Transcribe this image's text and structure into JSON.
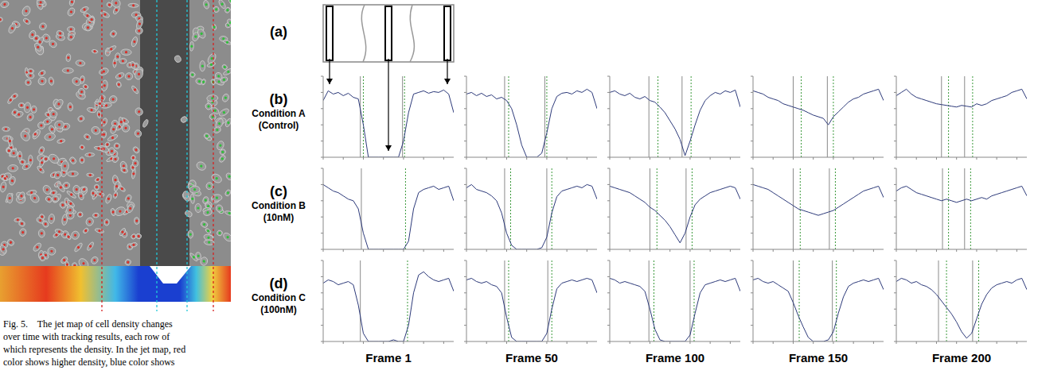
{
  "caption": [
    "Fig. 5.    The jet map of cell density changes",
    "over time with tracking results, each row of",
    "which represents the density. In the jet map, red",
    "color shows higher density, blue color shows"
  ],
  "panel_a": {
    "label": "(a)"
  },
  "rows": [
    {
      "label": "(b)",
      "condition": "Condition A",
      "note": "(Control)"
    },
    {
      "label": "(c)",
      "condition": "Condition B",
      "note": "(10nM)"
    },
    {
      "label": "(d)",
      "condition": "Condition C",
      "note": "(100nM)"
    }
  ],
  "columns": [
    "Frame 1",
    "Frame 50",
    "Frame 100",
    "Frame 150",
    "Frame 200"
  ],
  "chart_data": [
    {
      "type": "line",
      "color": "#2d3a7a",
      "tick_labels": false,
      "xlim": [
        0,
        1300
      ],
      "ylim": [
        0,
        100
      ],
      "xticks": [
        0,
        200,
        400,
        600,
        800,
        1000,
        1200
      ],
      "yticks": [
        0,
        20,
        40,
        60,
        80,
        100
      ],
      "x": [
        0,
        50,
        100,
        150,
        200,
        250,
        300,
        350,
        400,
        450,
        500,
        550,
        600,
        650,
        700,
        750,
        800,
        850,
        900,
        950,
        1000,
        1050,
        1100,
        1150,
        1200,
        1250,
        1300
      ],
      "values": [
        70,
        82,
        78,
        80,
        76,
        79,
        74,
        72,
        40,
        0,
        0,
        0,
        0,
        0,
        0,
        0,
        20,
        55,
        78,
        80,
        82,
        79,
        81,
        80,
        83,
        78,
        55
      ],
      "edges": [
        370,
        400,
        790,
        810
      ]
    },
    {
      "type": "line",
      "color": "#2d3a7a",
      "tick_labels": false,
      "xlim": [
        0,
        1300
      ],
      "ylim": [
        0,
        100
      ],
      "xticks": [
        0,
        200,
        400,
        600,
        800,
        1000,
        1200
      ],
      "yticks": [
        0,
        20,
        40,
        60,
        80,
        100
      ],
      "x": [
        0,
        50,
        100,
        150,
        200,
        250,
        300,
        350,
        400,
        450,
        500,
        550,
        600,
        650,
        700,
        750,
        800,
        850,
        900,
        950,
        1000,
        1050,
        1100,
        1150,
        1200,
        1250,
        1300
      ],
      "values": [
        78,
        80,
        76,
        79,
        75,
        77,
        72,
        74,
        70,
        60,
        40,
        15,
        0,
        0,
        0,
        5,
        30,
        60,
        75,
        79,
        80,
        78,
        82,
        80,
        84,
        80,
        60
      ],
      "edges": [
        380,
        420,
        780,
        800
      ]
    },
    {
      "type": "line",
      "color": "#2d3a7a",
      "tick_labels": false,
      "xlim": [
        0,
        1300
      ],
      "ylim": [
        0,
        100
      ],
      "xticks": [
        0,
        200,
        400,
        600,
        800,
        1000,
        1200
      ],
      "yticks": [
        0,
        20,
        40,
        60,
        80,
        100
      ],
      "x": [
        0,
        50,
        100,
        150,
        200,
        250,
        300,
        350,
        400,
        450,
        500,
        550,
        600,
        650,
        700,
        750,
        800,
        850,
        900,
        950,
        1000,
        1050,
        1100,
        1150,
        1200,
        1250,
        1300
      ],
      "values": [
        80,
        82,
        78,
        76,
        79,
        74,
        72,
        75,
        70,
        68,
        62,
        55,
        45,
        35,
        22,
        2,
        20,
        40,
        58,
        70,
        76,
        80,
        78,
        82,
        80,
        83,
        62
      ],
      "edges": [
        390,
        480,
        720,
        810
      ]
    },
    {
      "type": "line",
      "color": "#2d3a7a",
      "tick_labels": false,
      "xlim": [
        0,
        1300
      ],
      "ylim": [
        0,
        100
      ],
      "xticks": [
        0,
        200,
        400,
        600,
        800,
        1000,
        1200
      ],
      "yticks": [
        0,
        20,
        40,
        60,
        80,
        100
      ],
      "x": [
        0,
        50,
        100,
        150,
        200,
        250,
        300,
        350,
        400,
        450,
        500,
        550,
        600,
        650,
        700,
        750,
        800,
        850,
        900,
        950,
        1000,
        1050,
        1100,
        1150,
        1200,
        1250,
        1300
      ],
      "values": [
        82,
        80,
        78,
        74,
        72,
        70,
        66,
        64,
        62,
        60,
        58,
        55,
        52,
        50,
        48,
        40,
        50,
        56,
        62,
        68,
        72,
        74,
        78,
        80,
        82,
        84,
        70
      ],
      "edges": [
        400,
        480,
        740,
        800
      ]
    },
    {
      "type": "line",
      "color": "#2d3a7a",
      "tick_labels": false,
      "xlim": [
        0,
        1300
      ],
      "ylim": [
        0,
        100
      ],
      "xticks": [
        0,
        200,
        400,
        600,
        800,
        1000,
        1200
      ],
      "yticks": [
        0,
        20,
        40,
        60,
        80,
        100
      ],
      "x": [
        0,
        50,
        100,
        150,
        200,
        250,
        300,
        350,
        400,
        450,
        500,
        550,
        600,
        650,
        700,
        750,
        800,
        850,
        900,
        950,
        1000,
        1050,
        1100,
        1150,
        1200,
        1250,
        1300
      ],
      "values": [
        76,
        80,
        84,
        78,
        74,
        72,
        70,
        68,
        66,
        65,
        64,
        63,
        62,
        64,
        63,
        62,
        66,
        64,
        66,
        70,
        72,
        74,
        76,
        80,
        82,
        84,
        72
      ],
      "edges": [
        450,
        520,
        680,
        760
      ]
    },
    {
      "type": "line",
      "color": "#2d3a7a",
      "tick_labels": false,
      "xlim": [
        0,
        1300
      ],
      "ylim": [
        0,
        100
      ],
      "xticks": [
        0,
        200,
        400,
        600,
        800,
        1000,
        1200
      ],
      "yticks": [
        0,
        20,
        40,
        60,
        80,
        100
      ],
      "x": [
        0,
        50,
        100,
        150,
        200,
        250,
        300,
        350,
        400,
        450,
        500,
        550,
        600,
        650,
        700,
        750,
        800,
        850,
        900,
        950,
        1000,
        1050,
        1100,
        1150,
        1200,
        1250,
        1300
      ],
      "values": [
        80,
        76,
        72,
        70,
        66,
        62,
        60,
        50,
        20,
        0,
        0,
        0,
        0,
        0,
        0,
        0,
        0,
        10,
        50,
        70,
        74,
        76,
        78,
        74,
        76,
        78,
        60
      ],
      "edges": [
        380,
        820
      ]
    },
    {
      "type": "line",
      "color": "#2d3a7a",
      "tick_labels": false,
      "xlim": [
        0,
        1300
      ],
      "ylim": [
        0,
        100
      ],
      "xticks": [
        0,
        200,
        400,
        600,
        800,
        1000,
        1200
      ],
      "yticks": [
        0,
        20,
        40,
        60,
        80,
        100
      ],
      "x": [
        0,
        50,
        100,
        150,
        200,
        250,
        300,
        350,
        400,
        450,
        500,
        550,
        600,
        650,
        700,
        750,
        800,
        850,
        900,
        950,
        1000,
        1050,
        1100,
        1150,
        1200,
        1250,
        1300
      ],
      "values": [
        76,
        80,
        74,
        72,
        70,
        66,
        60,
        45,
        20,
        5,
        0,
        0,
        0,
        0,
        0,
        2,
        15,
        45,
        65,
        72,
        74,
        76,
        78,
        76,
        80,
        78,
        62
      ],
      "edges": [
        380,
        440,
        800,
        850
      ]
    },
    {
      "type": "line",
      "color": "#2d3a7a",
      "tick_labels": false,
      "xlim": [
        0,
        1300
      ],
      "ylim": [
        0,
        100
      ],
      "xticks": [
        0,
        200,
        400,
        600,
        800,
        1000,
        1200
      ],
      "yticks": [
        0,
        20,
        40,
        60,
        80,
        100
      ],
      "x": [
        0,
        50,
        100,
        150,
        200,
        250,
        300,
        350,
        400,
        450,
        500,
        550,
        600,
        650,
        700,
        750,
        800,
        850,
        900,
        950,
        1000,
        1050,
        1100,
        1150,
        1200,
        1250,
        1300
      ],
      "values": [
        78,
        76,
        74,
        72,
        70,
        66,
        62,
        58,
        52,
        48,
        42,
        36,
        28,
        18,
        8,
        20,
        40,
        55,
        62,
        66,
        70,
        72,
        74,
        76,
        78,
        76,
        62
      ],
      "edges": [
        400,
        470,
        760,
        820
      ]
    },
    {
      "type": "line",
      "color": "#2d3a7a",
      "tick_labels": false,
      "xlim": [
        0,
        1300
      ],
      "ylim": [
        0,
        100
      ],
      "xticks": [
        0,
        200,
        400,
        600,
        800,
        1000,
        1200
      ],
      "yticks": [
        0,
        20,
        40,
        60,
        80,
        100
      ],
      "x": [
        0,
        50,
        100,
        150,
        200,
        250,
        300,
        350,
        400,
        450,
        500,
        550,
        600,
        650,
        700,
        750,
        800,
        850,
        900,
        950,
        1000,
        1050,
        1100,
        1150,
        1200,
        1250,
        1300
      ],
      "values": [
        80,
        78,
        76,
        74,
        70,
        66,
        62,
        58,
        54,
        50,
        48,
        46,
        44,
        42,
        44,
        46,
        48,
        52,
        56,
        60,
        64,
        68,
        72,
        74,
        76,
        78,
        64
      ],
      "edges": [
        400,
        470,
        760,
        820
      ]
    },
    {
      "type": "line",
      "color": "#2d3a7a",
      "tick_labels": false,
      "xlim": [
        0,
        1300
      ],
      "ylim": [
        0,
        100
      ],
      "xticks": [
        0,
        200,
        400,
        600,
        800,
        1000,
        1200
      ],
      "yticks": [
        0,
        20,
        40,
        60,
        80,
        100
      ],
      "x": [
        0,
        50,
        100,
        150,
        200,
        250,
        300,
        350,
        400,
        450,
        500,
        550,
        600,
        650,
        700,
        750,
        800,
        850,
        900,
        950,
        1000,
        1050,
        1100,
        1150,
        1200,
        1250,
        1300
      ],
      "values": [
        72,
        76,
        78,
        74,
        70,
        68,
        66,
        64,
        62,
        60,
        62,
        60,
        58,
        60,
        62,
        60,
        62,
        64,
        62,
        66,
        68,
        70,
        72,
        74,
        76,
        78,
        66
      ],
      "edges": [
        460,
        520,
        680,
        740
      ]
    },
    {
      "type": "line",
      "color": "#2d3a7a",
      "tick_labels": false,
      "xlim": [
        0,
        1300
      ],
      "ylim": [
        0,
        100
      ],
      "xticks": [
        0,
        200,
        400,
        600,
        800,
        1000,
        1200
      ],
      "yticks": [
        0,
        20,
        40,
        60,
        80,
        100
      ],
      "x": [
        0,
        50,
        100,
        150,
        200,
        250,
        300,
        350,
        400,
        450,
        500,
        550,
        600,
        650,
        700,
        750,
        800,
        850,
        900,
        950,
        1000,
        1050,
        1100,
        1150,
        1200,
        1250,
        1300
      ],
      "values": [
        72,
        76,
        74,
        70,
        72,
        74,
        70,
        45,
        10,
        0,
        0,
        0,
        0,
        0,
        2,
        0,
        0,
        20,
        60,
        82,
        86,
        80,
        76,
        74,
        76,
        78,
        62
      ],
      "edges": [
        370,
        840
      ]
    },
    {
      "type": "line",
      "color": "#2d3a7a",
      "tick_labels": false,
      "xlim": [
        0,
        1300
      ],
      "ylim": [
        0,
        100
      ],
      "xticks": [
        0,
        200,
        400,
        600,
        800,
        1000,
        1200
      ],
      "yticks": [
        0,
        20,
        40,
        60,
        80,
        100
      ],
      "x": [
        0,
        50,
        100,
        150,
        200,
        250,
        300,
        350,
        400,
        450,
        500,
        550,
        600,
        650,
        700,
        750,
        800,
        850,
        900,
        950,
        1000,
        1050,
        1100,
        1150,
        1200,
        1250,
        1300
      ],
      "values": [
        76,
        78,
        74,
        72,
        74,
        70,
        68,
        60,
        30,
        5,
        0,
        0,
        0,
        0,
        0,
        0,
        10,
        40,
        65,
        72,
        74,
        76,
        74,
        76,
        78,
        76,
        60
      ],
      "edges": [
        380,
        420,
        810,
        850
      ]
    },
    {
      "type": "line",
      "color": "#2d3a7a",
      "tick_labels": false,
      "xlim": [
        0,
        1300
      ],
      "ylim": [
        0,
        100
      ],
      "xticks": [
        0,
        200,
        400,
        600,
        800,
        1000,
        1200
      ],
      "yticks": [
        0,
        20,
        40,
        60,
        80,
        100
      ],
      "x": [
        0,
        50,
        100,
        150,
        200,
        250,
        300,
        350,
        400,
        450,
        500,
        550,
        600,
        650,
        700,
        750,
        800,
        850,
        900,
        950,
        1000,
        1050,
        1100,
        1150,
        1200,
        1250,
        1300
      ],
      "values": [
        78,
        76,
        72,
        74,
        72,
        70,
        68,
        62,
        40,
        15,
        2,
        0,
        0,
        0,
        0,
        0,
        8,
        35,
        60,
        70,
        72,
        74,
        76,
        74,
        76,
        78,
        62
      ],
      "edges": [
        390,
        440,
        800,
        840
      ]
    },
    {
      "type": "line",
      "color": "#2d3a7a",
      "tick_labels": false,
      "xlim": [
        0,
        1300
      ],
      "ylim": [
        0,
        100
      ],
      "xticks": [
        0,
        200,
        400,
        600,
        800,
        1000,
        1200
      ],
      "yticks": [
        0,
        20,
        40,
        60,
        80,
        100
      ],
      "x": [
        0,
        50,
        100,
        150,
        200,
        250,
        300,
        350,
        400,
        450,
        500,
        550,
        600,
        650,
        700,
        750,
        800,
        850,
        900,
        950,
        1000,
        1050,
        1100,
        1150,
        1200,
        1250,
        1300
      ],
      "values": [
        76,
        78,
        74,
        72,
        74,
        70,
        66,
        62,
        48,
        32,
        18,
        5,
        0,
        0,
        0,
        2,
        12,
        35,
        55,
        68,
        72,
        74,
        76,
        74,
        76,
        78,
        64
      ],
      "edges": [
        400,
        460,
        790,
        830
      ]
    },
    {
      "type": "line",
      "color": "#2d3a7a",
      "tick_labels": false,
      "xlim": [
        0,
        1300
      ],
      "ylim": [
        0,
        100
      ],
      "xticks": [
        0,
        200,
        400,
        600,
        800,
        1000,
        1200
      ],
      "yticks": [
        0,
        20,
        40,
        60,
        80,
        100
      ],
      "x": [
        0,
        50,
        100,
        150,
        200,
        250,
        300,
        350,
        400,
        450,
        500,
        550,
        600,
        650,
        700,
        750,
        800,
        850,
        900,
        950,
        1000,
        1050,
        1100,
        1150,
        1200,
        1250,
        1300
      ],
      "values": [
        74,
        78,
        76,
        72,
        74,
        70,
        68,
        64,
        58,
        50,
        42,
        34,
        24,
        12,
        4,
        10,
        28,
        46,
        58,
        66,
        70,
        72,
        74,
        72,
        76,
        78,
        64
      ],
      "edges": [
        420,
        500,
        760,
        820
      ]
    }
  ]
}
